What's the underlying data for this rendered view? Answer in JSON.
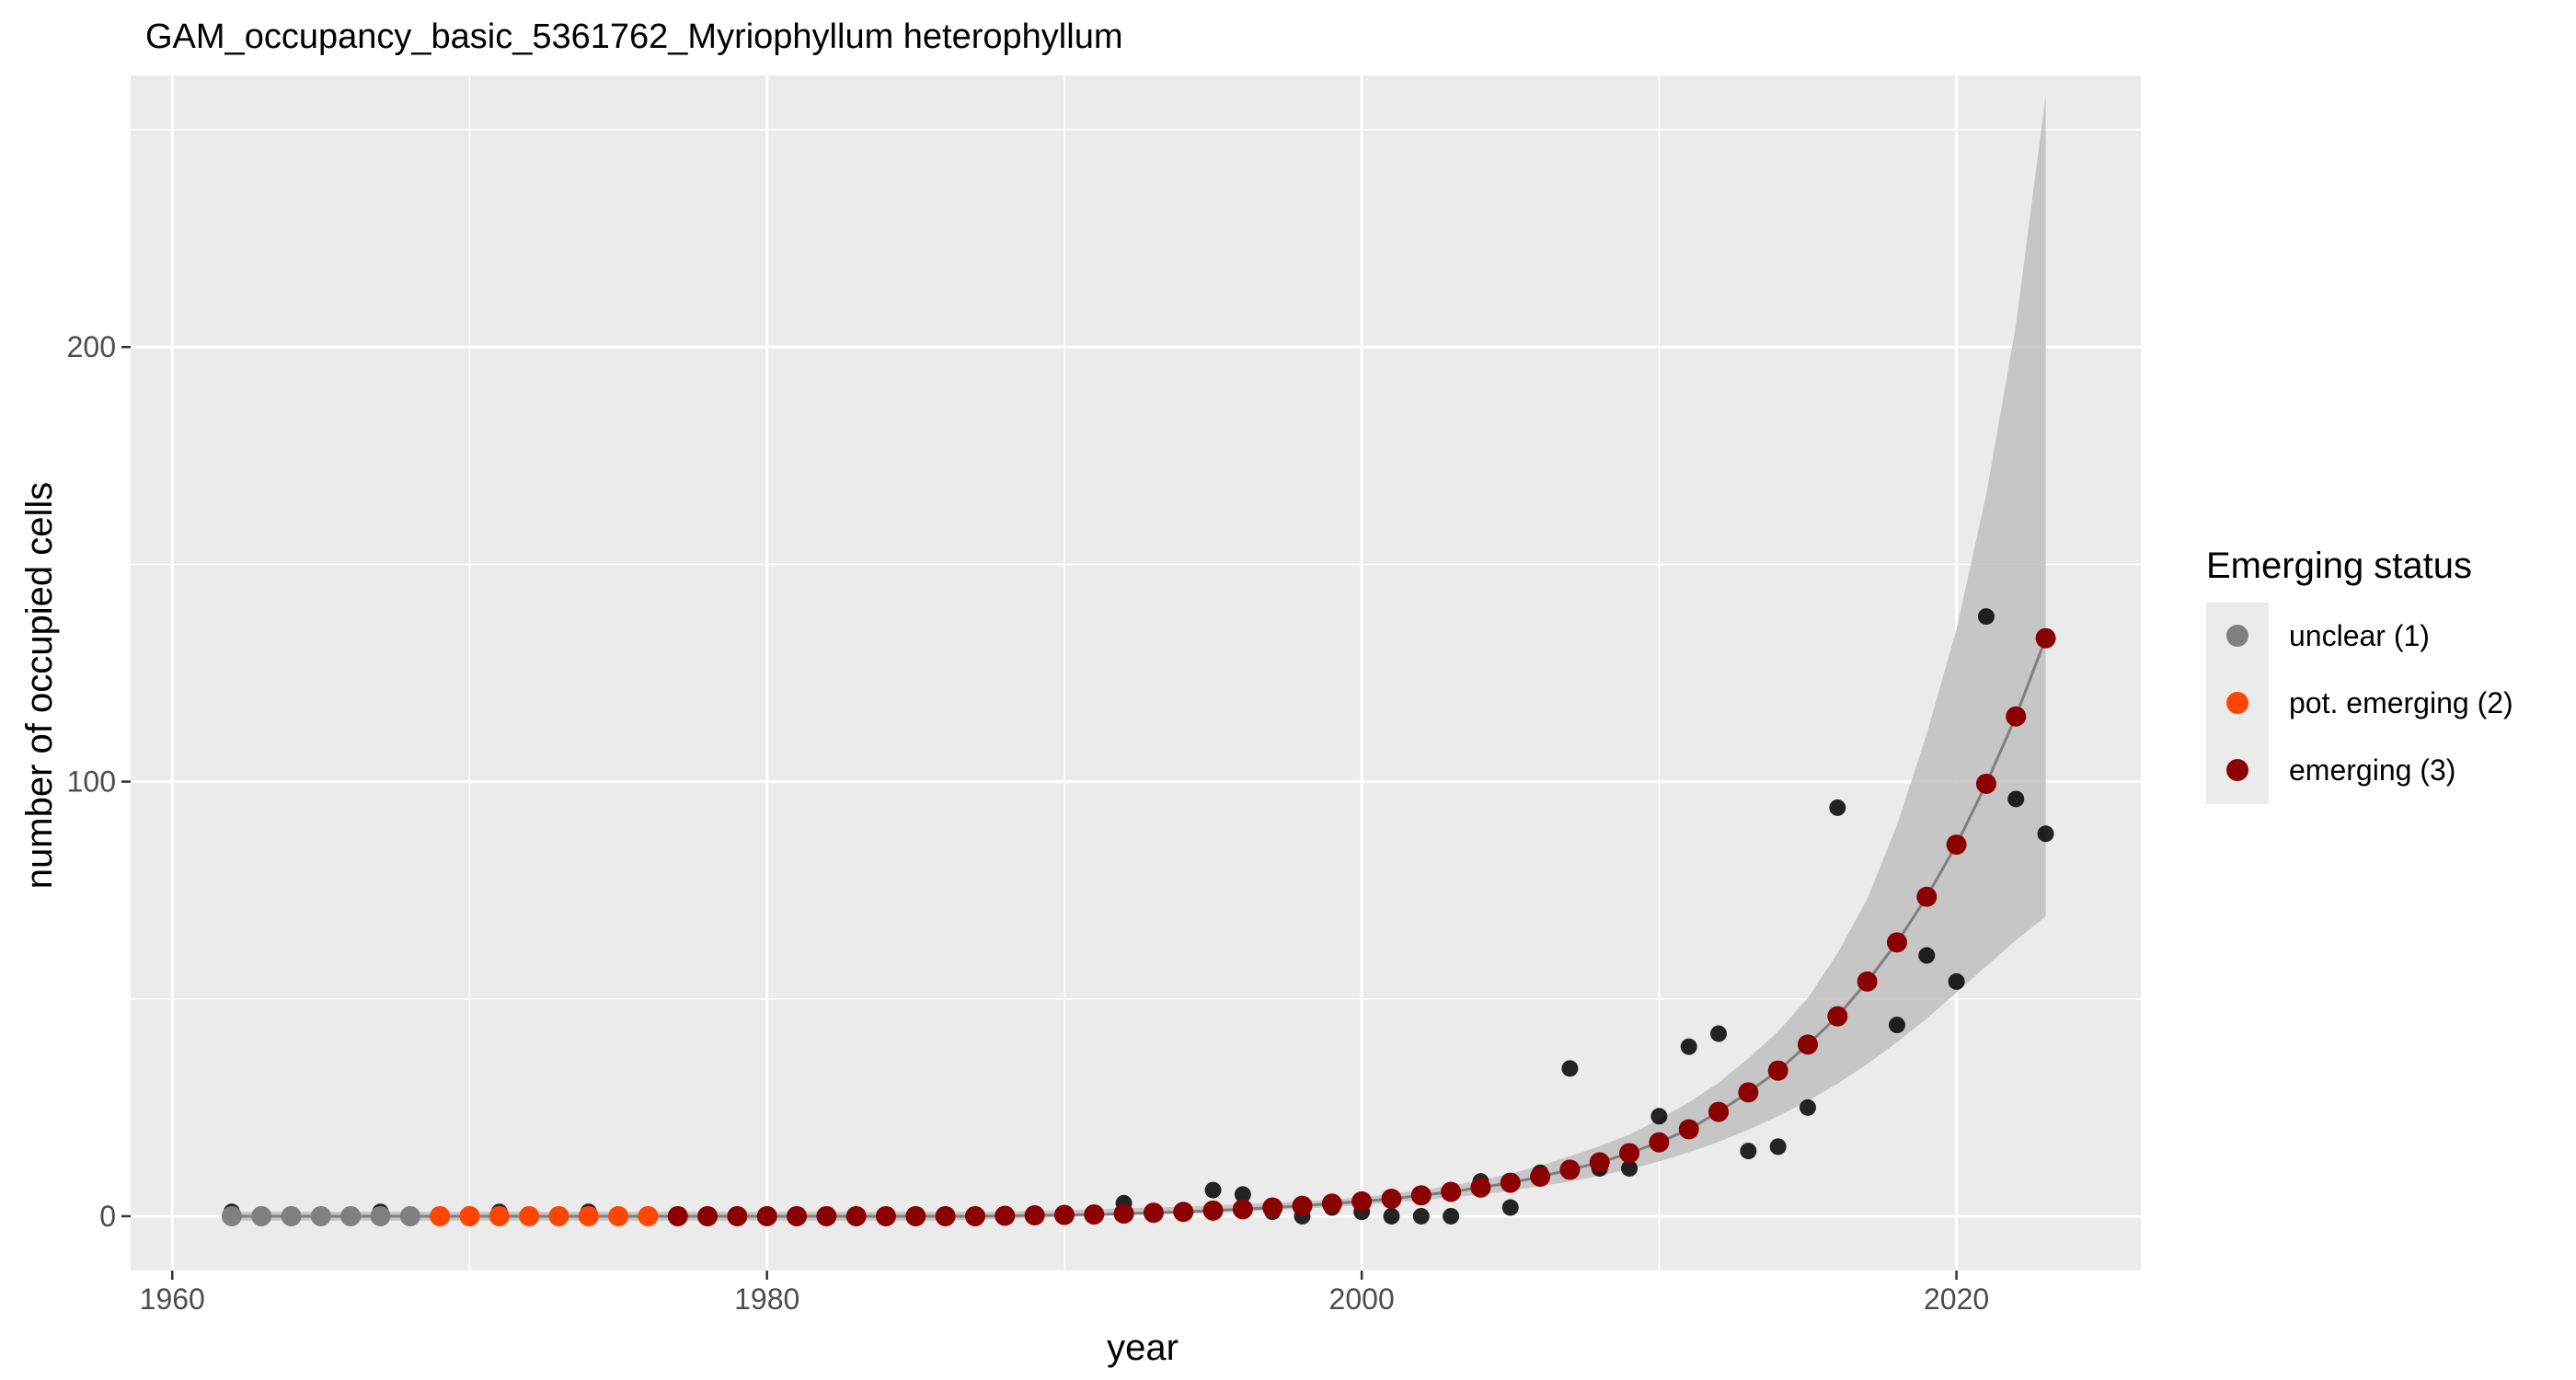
{
  "chart_data": {
    "type": "scatter",
    "title": "GAM_occupancy_basic_5361762_Myriophyllum heterophyllum",
    "xlabel": "year",
    "ylabel": "number of occupied cells",
    "xlim": [
      1958.6,
      2026.2
    ],
    "ylim": [
      -12.5,
      262.5
    ],
    "x_ticks": [
      1960,
      1980,
      2000,
      2020
    ],
    "y_ticks": [
      0,
      100,
      200
    ],
    "grid": true,
    "legend": {
      "title": "Emerging status",
      "position": "right",
      "entries": [
        {
          "label": "unclear (1)",
          "color": "#808080"
        },
        {
          "label": "pot. emerging (2)",
          "color": "#ff4500"
        },
        {
          "label": "emerging (3)",
          "color": "#8b0000"
        }
      ]
    },
    "colors": {
      "panel": "#ebebeb",
      "grid": "#ffffff",
      "observed": "#000000",
      "band": "#bfbfbf",
      "fit_line": "#7f7f7f"
    },
    "observed": {
      "x": [
        1962,
        1963,
        1964,
        1965,
        1966,
        1967,
        1968,
        1969,
        1970,
        1971,
        1972,
        1973,
        1974,
        1975,
        1976,
        1977,
        1978,
        1979,
        1980,
        1981,
        1982,
        1983,
        1984,
        1985,
        1986,
        1987,
        1988,
        1989,
        1990,
        1991,
        1992,
        1993,
        1994,
        1995,
        1996,
        1997,
        1998,
        1999,
        2000,
        2001,
        2002,
        2003,
        2004,
        2005,
        2006,
        2007,
        2008,
        2009,
        2010,
        2011,
        2012,
        2013,
        2014,
        2015,
        2016,
        2017,
        2018,
        2019,
        2020,
        2021,
        2022,
        2023
      ],
      "y": [
        1,
        0,
        0,
        0,
        0,
        1,
        0,
        0,
        0,
        1,
        0,
        0,
        1,
        0,
        0,
        0,
        0,
        0,
        0,
        0,
        0,
        0,
        0,
        0,
        0,
        0,
        0,
        0,
        0,
        0,
        3,
        1,
        1,
        6,
        5,
        1,
        0,
        2,
        1,
        0,
        0,
        0,
        8,
        2,
        10,
        34,
        11,
        11,
        23,
        39,
        42,
        15,
        16,
        25,
        94,
        54,
        44,
        60,
        54,
        138,
        96,
        88
      ]
    },
    "fitted": {
      "x": [
        1962,
        1963,
        1964,
        1965,
        1966,
        1967,
        1968,
        1969,
        1970,
        1971,
        1972,
        1973,
        1974,
        1975,
        1976,
        1977,
        1978,
        1979,
        1980,
        1981,
        1982,
        1983,
        1984,
        1985,
        1986,
        1987,
        1988,
        1989,
        1990,
        1991,
        1992,
        1993,
        1994,
        1995,
        1996,
        1997,
        1998,
        1999,
        2000,
        2001,
        2002,
        2003,
        2004,
        2005,
        2006,
        2007,
        2008,
        2009,
        2010,
        2011,
        2012,
        2013,
        2014,
        2015,
        2016,
        2017,
        2018,
        2019,
        2020,
        2021,
        2022,
        2023
      ],
      "y": [
        0,
        0,
        0,
        0,
        0,
        0,
        0,
        0,
        0,
        0,
        0,
        0,
        0,
        0,
        0,
        0,
        0,
        0,
        0,
        0,
        0,
        0,
        0,
        0,
        0,
        0,
        0.1,
        0.2,
        0.3,
        0.4,
        0.6,
        0.8,
        1,
        1.3,
        1.6,
        2,
        2.4,
        2.9,
        3.4,
        4,
        4.8,
        5.6,
        6.6,
        7.7,
        9.1,
        10.7,
        12.4,
        14.5,
        17,
        20,
        24,
        28.5,
        33.5,
        39.5,
        46,
        54,
        63,
        73.5,
        85.5,
        99.5,
        115,
        133
      ],
      "status": [
        1,
        1,
        1,
        1,
        1,
        1,
        1,
        2,
        2,
        2,
        2,
        2,
        2,
        2,
        2,
        3,
        3,
        3,
        3,
        3,
        3,
        3,
        3,
        3,
        3,
        3,
        3,
        3,
        3,
        3,
        3,
        3,
        3,
        3,
        3,
        3,
        3,
        3,
        3,
        3,
        3,
        3,
        3,
        3,
        3,
        3,
        3,
        3,
        3,
        3,
        3,
        3,
        3,
        3,
        3,
        3,
        3,
        3,
        3,
        3,
        3,
        3
      ],
      "lower": [
        -1,
        -1,
        -1,
        -1,
        -1,
        -1,
        -1,
        -1,
        -1,
        -1,
        -1,
        -1,
        -1,
        -1,
        -1,
        -1,
        -1,
        -1,
        -1,
        -1,
        -1,
        -1,
        -1,
        -1,
        -1,
        -0.8,
        -0.6,
        -0.4,
        -0.2,
        0,
        0.2,
        0.4,
        0.6,
        0.8,
        1.1,
        1.4,
        1.7,
        2.1,
        2.6,
        3.1,
        3.7,
        4.3,
        5,
        5.9,
        6.9,
        8,
        9.3,
        10.8,
        12.6,
        14.7,
        17.1,
        19.9,
        23,
        26.5,
        30.5,
        35,
        40,
        45.5,
        51.5,
        57.5,
        63.5,
        69
      ],
      "upper": [
        1,
        1,
        1,
        1,
        1,
        1,
        1,
        1,
        1,
        1,
        1,
        1,
        1,
        1,
        1,
        1,
        1,
        1,
        1,
        1,
        1,
        1,
        1,
        1,
        1,
        1,
        1,
        1.2,
        1.4,
        1.6,
        1.8,
        2,
        2.2,
        2.5,
        2.8,
        3.1,
        3.4,
        3.8,
        4.4,
        5.1,
        6,
        7,
        8.3,
        9.8,
        11.6,
        13.8,
        16.1,
        18.8,
        22.3,
        26.2,
        30.7,
        36.3,
        42.5,
        50.2,
        60.5,
        73,
        90,
        111,
        135,
        166,
        205,
        258
      ]
    }
  }
}
